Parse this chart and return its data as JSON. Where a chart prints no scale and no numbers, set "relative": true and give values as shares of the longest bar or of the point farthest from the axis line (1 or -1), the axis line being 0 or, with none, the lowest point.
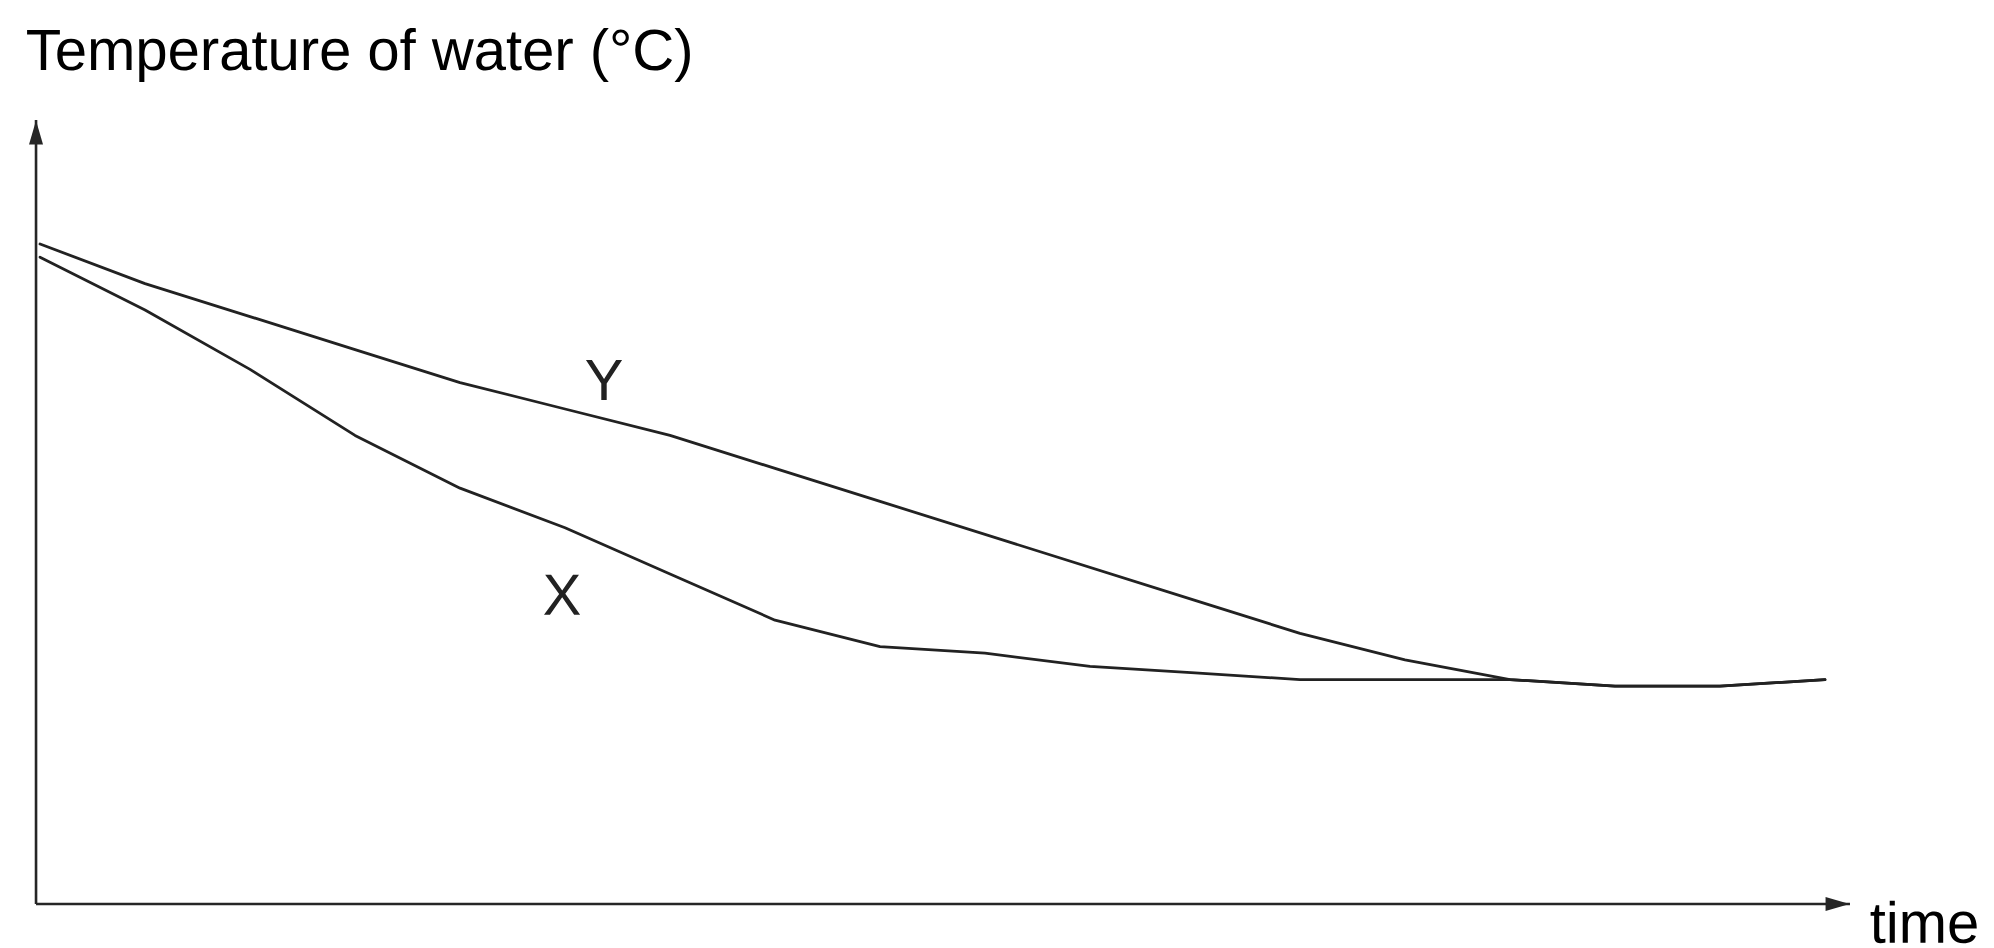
{
  "chart_data": {
    "type": "line",
    "ylabel": "Temperature of water (°C)",
    "xlabel": "time",
    "relative": true,
    "categories": [
      null,
      null,
      null,
      null,
      null,
      null,
      null,
      null,
      null,
      null,
      null,
      null,
      null,
      null,
      null,
      null,
      null,
      null
    ],
    "series": [
      {
        "name": "Y",
        "color": "#222222",
        "values": [
          1.0,
          0.94,
          0.89,
          0.84,
          0.79,
          0.75,
          0.71,
          0.66,
          0.61,
          0.56,
          0.51,
          0.46,
          0.41,
          0.37,
          0.34,
          0.33,
          0.33,
          0.34
        ]
      },
      {
        "name": "X",
        "color": "#222222",
        "values": [
          0.98,
          0.9,
          0.81,
          0.71,
          0.63,
          0.57,
          0.5,
          0.43,
          0.39,
          0.38,
          0.36,
          0.35,
          0.34,
          0.34,
          0.34,
          0.33,
          0.33,
          0.34
        ]
      }
    ]
  }
}
